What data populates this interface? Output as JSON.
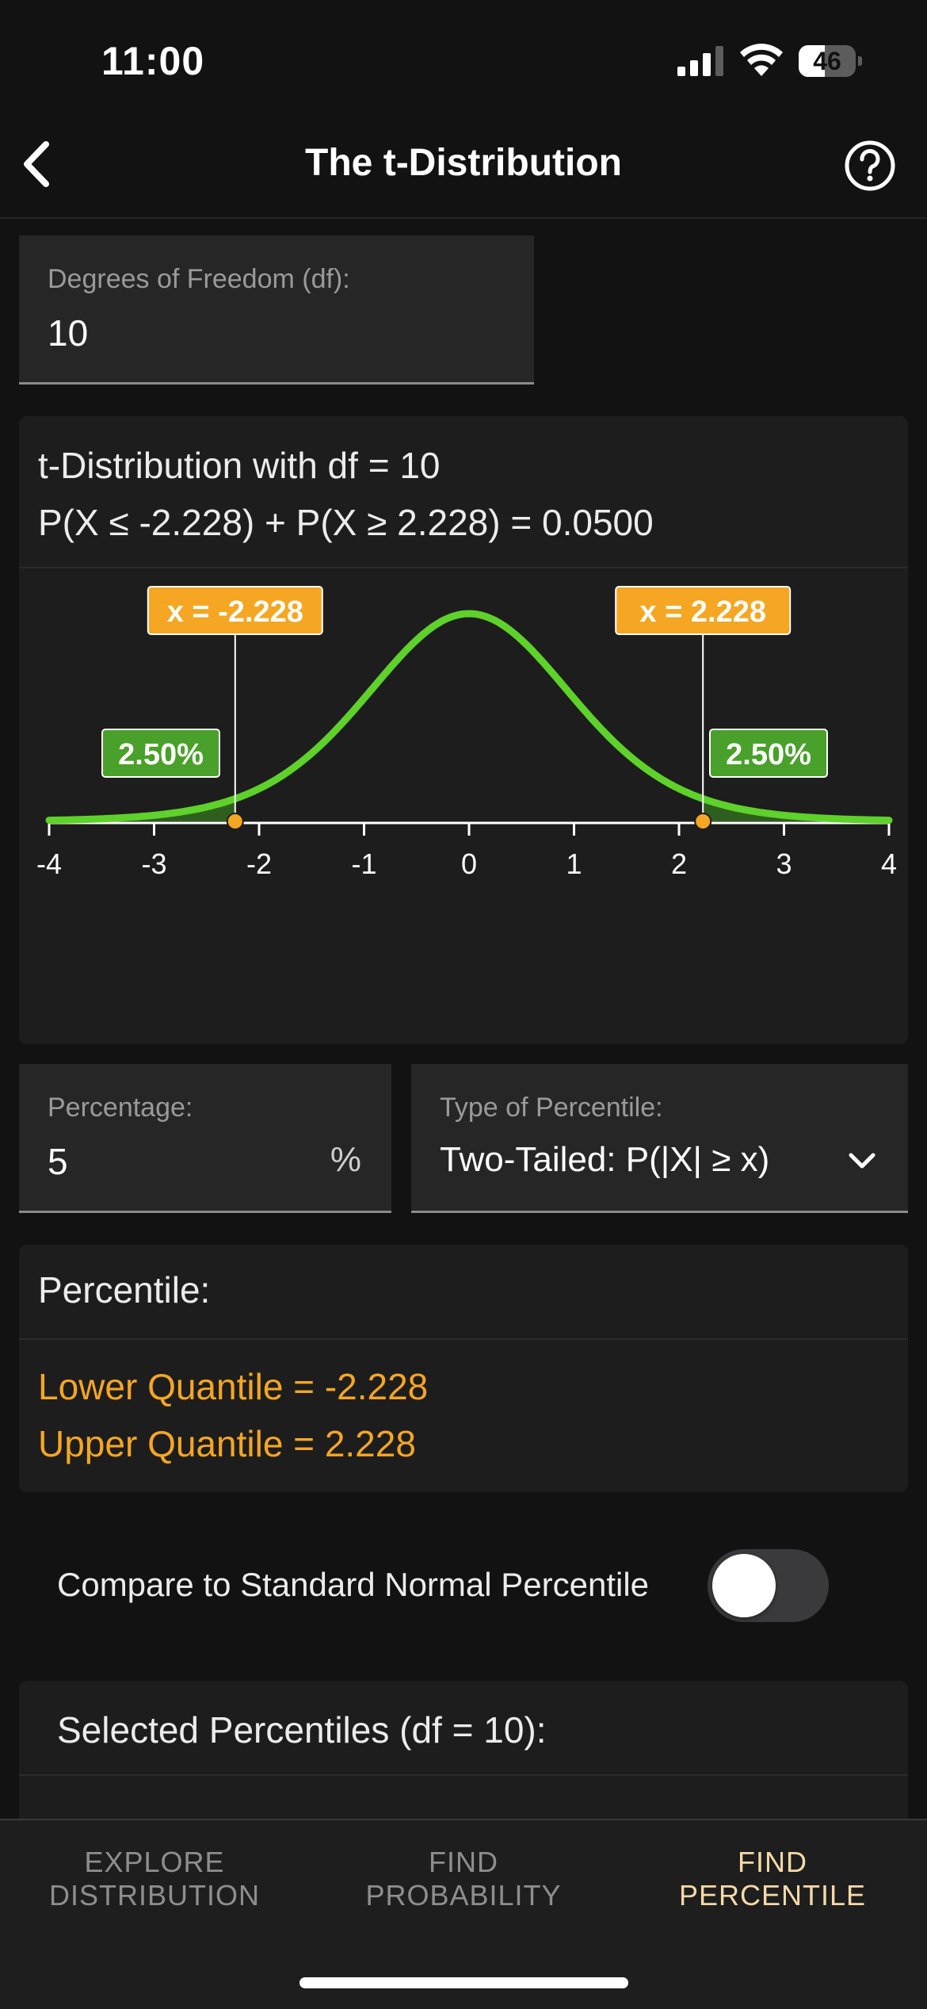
{
  "status": {
    "time": "11:00",
    "battery": "46",
    "battery_level": 0.46
  },
  "nav": {
    "title": "The t-Distribution",
    "back_icon": "chevron-left-icon",
    "help_icon": "question-circle-icon"
  },
  "df_field": {
    "label": "Degrees of Freedom (df):",
    "value": "10"
  },
  "chart": {
    "heading_line1": "t-Distribution with df = 10",
    "heading_line2": "P(X ≤ -2.228) + P(X ≥ 2.228) = 0.0500",
    "left_marker_label": "x = -2.228",
    "right_marker_label": "x = 2.228",
    "left_tail_label": "2.50%",
    "right_tail_label": "2.50%"
  },
  "chart_data": {
    "type": "line",
    "title": "t-Distribution with df = 10",
    "df": 10,
    "xlim": [
      -4,
      4
    ],
    "x_ticks": [
      -4,
      -3,
      -2,
      -1,
      0,
      1,
      2,
      3,
      4
    ],
    "tick_labels": [
      "-4",
      "-3",
      "-2",
      "-1",
      "0",
      "1",
      "2",
      "3",
      "4"
    ],
    "critical_values": [
      -2.228,
      2.228
    ],
    "tail_probability": 0.025,
    "total_probability": 0.05,
    "curve_color": "#5ed12a",
    "shade_color": "#2f5f1e",
    "marker_color": "#f5a623",
    "tail_label_color": "#49a02a"
  },
  "percentage": {
    "label": "Percentage:",
    "value": "5",
    "unit": "%"
  },
  "percentile_type": {
    "label": "Type of Percentile:",
    "value": "Two-Tailed: P(|X| ≥ x)"
  },
  "result": {
    "heading": "Percentile:",
    "lower": "Lower Quantile = -2.228",
    "upper": "Upper Quantile = 2.228"
  },
  "compare": {
    "label": "Compare to Standard Normal Percentile",
    "enabled": false
  },
  "selected": {
    "heading": "Selected Percentiles (df = 10):"
  },
  "tabs": [
    {
      "line1": "EXPLORE",
      "line2": "DISTRIBUTION",
      "active": false
    },
    {
      "line1": "FIND",
      "line2": "PROBABILITY",
      "active": false
    },
    {
      "line1": "FIND",
      "line2": "PERCENTILE",
      "active": true
    }
  ],
  "colors": {
    "accent": "#f5a623",
    "tab_active": "#f7d9a8",
    "background": "#121212"
  }
}
